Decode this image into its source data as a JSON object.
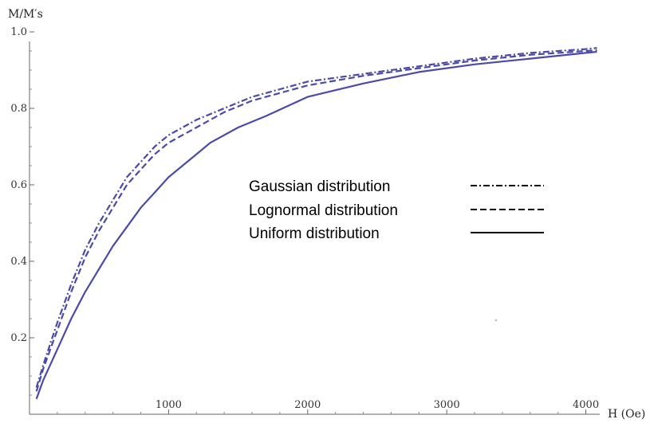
{
  "chart_data": {
    "type": "line",
    "xlabel": "H  (Oe)",
    "ylabel": "M/M′s",
    "xlim": [
      0,
      4100
    ],
    "ylim": [
      0,
      1.0
    ],
    "x_ticks": [
      1000,
      2000,
      3000,
      4000
    ],
    "y_ticks": [
      0.2,
      0.4,
      0.6,
      0.8,
      1.0
    ],
    "grid": false,
    "legend_position": "center-right",
    "series_color": "#4a4aa8",
    "series": [
      {
        "name": "Gaussian distribution",
        "style": "dashdot",
        "x": [
          50,
          100,
          200,
          300,
          400,
          500,
          600,
          700,
          800,
          900,
          1000,
          1200,
          1400,
          1600,
          1800,
          2000,
          2400,
          2800,
          3200,
          3600,
          4000,
          4080
        ],
        "y": [
          0.07,
          0.13,
          0.24,
          0.34,
          0.43,
          0.5,
          0.56,
          0.62,
          0.66,
          0.7,
          0.73,
          0.77,
          0.8,
          0.83,
          0.85,
          0.87,
          0.89,
          0.91,
          0.93,
          0.945,
          0.955,
          0.958
        ]
      },
      {
        "name": "Lognormal distribution",
        "style": "dashed",
        "x": [
          50,
          100,
          200,
          300,
          400,
          500,
          600,
          700,
          800,
          900,
          1000,
          1200,
          1400,
          1600,
          1800,
          2000,
          2400,
          2800,
          3200,
          3600,
          4000,
          4080
        ],
        "y": [
          0.06,
          0.12,
          0.22,
          0.32,
          0.41,
          0.48,
          0.54,
          0.6,
          0.64,
          0.68,
          0.71,
          0.75,
          0.79,
          0.82,
          0.84,
          0.86,
          0.885,
          0.905,
          0.925,
          0.94,
          0.95,
          0.952
        ]
      },
      {
        "name": "Uniform distribution",
        "style": "solid",
        "x": [
          50,
          100,
          200,
          300,
          400,
          500,
          600,
          700,
          800,
          900,
          1000,
          1200,
          1300,
          1500,
          1700,
          2000,
          2400,
          2800,
          3200,
          3600,
          4000,
          4080
        ],
        "y": [
          0.04,
          0.09,
          0.17,
          0.25,
          0.32,
          0.38,
          0.44,
          0.49,
          0.54,
          0.58,
          0.62,
          0.68,
          0.71,
          0.75,
          0.78,
          0.83,
          0.865,
          0.895,
          0.915,
          0.93,
          0.945,
          0.948
        ]
      }
    ]
  }
}
